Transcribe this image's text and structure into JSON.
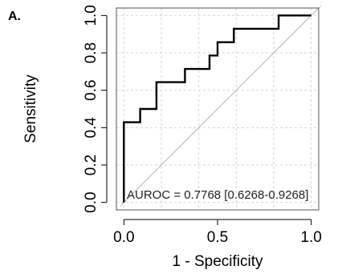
{
  "panel_label": "A.",
  "chart_data": {
    "type": "line",
    "xlabel": "1 - Specificity",
    "ylabel": "Sensitivity",
    "xlim": [
      -0.04,
      1.04
    ],
    "ylim": [
      -0.04,
      1.04
    ],
    "x_ticks": [
      0.0,
      0.5,
      1.0
    ],
    "x_tick_labels": [
      "0.0",
      "0.5",
      "1.0"
    ],
    "y_ticks": [
      0.0,
      0.2,
      0.4,
      0.6,
      0.8,
      1.0
    ],
    "y_tick_labels": [
      "0.0",
      "0.2",
      "0.4",
      "0.6",
      "0.8",
      "1.0"
    ],
    "grid": true,
    "series": [
      {
        "x": [
          0.0,
          0.0,
          0.087,
          0.087,
          0.174,
          0.174,
          0.326,
          0.326,
          0.457,
          0.457,
          0.5,
          0.5,
          0.587,
          0.587,
          0.826,
          0.826,
          1.0
        ],
        "y": [
          0.0,
          0.429,
          0.429,
          0.5,
          0.5,
          0.643,
          0.643,
          0.714,
          0.714,
          0.786,
          0.786,
          0.857,
          0.857,
          0.929,
          0.929,
          1.0,
          1.0
        ],
        "color": "#000000"
      }
    ],
    "reference_line": {
      "x": [
        0.0,
        1.0
      ],
      "y": [
        0.0,
        1.0
      ],
      "color": "#b5b5b5"
    },
    "annotation": "AUROC = 0.7768 [0.6268-0.9268]"
  }
}
